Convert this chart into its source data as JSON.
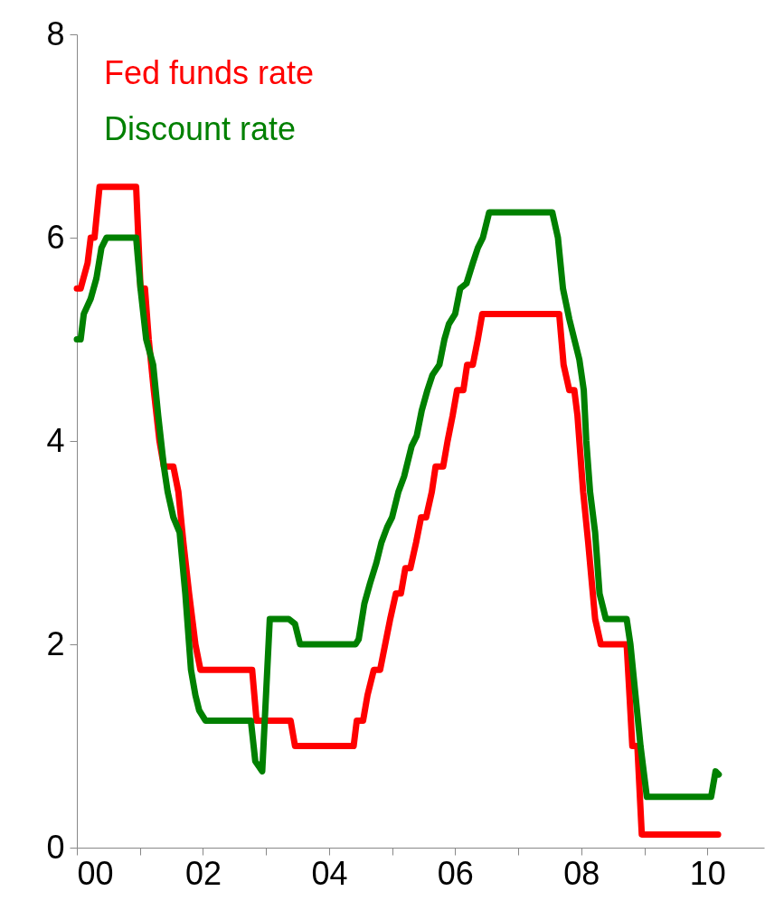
{
  "chart_data": {
    "type": "line",
    "xlim": [
      2000,
      2010.9
    ],
    "ylim": [
      0,
      8
    ],
    "yticks": [
      0,
      2,
      4,
      6,
      8
    ],
    "xticks": [
      {
        "value": 2000,
        "label": "00"
      },
      {
        "value": 2001,
        "label": null
      },
      {
        "value": 2002,
        "label": "02"
      },
      {
        "value": 2003,
        "label": null
      },
      {
        "value": 2004,
        "label": "04"
      },
      {
        "value": 2005,
        "label": null
      },
      {
        "value": 2006,
        "label": "06"
      },
      {
        "value": 2007,
        "label": null
      },
      {
        "value": 2008,
        "label": "08"
      },
      {
        "value": 2009,
        "label": null
      },
      {
        "value": 2010,
        "label": "10"
      }
    ],
    "grid": false,
    "legend": "top left",
    "marker": "none",
    "line_style": "solid",
    "series": [
      {
        "name": "Fed funds rate",
        "color": "#ff0000",
        "x": [
          2000.0,
          2000.06,
          2000.17,
          2000.22,
          2000.28,
          2000.36,
          2000.94,
          2001.01,
          2001.08,
          2001.14,
          2001.22,
          2001.31,
          2001.38,
          2001.53,
          2001.61,
          2001.69,
          2001.78,
          2001.88,
          2001.96,
          2002.78,
          2002.85,
          2003.39,
          2003.46,
          2004.39,
          2004.44,
          2004.54,
          2004.61,
          2004.71,
          2004.81,
          2004.89,
          2004.97,
          2005.06,
          2005.14,
          2005.21,
          2005.29,
          2005.38,
          2005.46,
          2005.54,
          2005.63,
          2005.69,
          2005.81,
          2005.88,
          2005.96,
          2006.03,
          2006.13,
          2006.19,
          2006.28,
          2006.36,
          2006.43,
          2007.65,
          2007.72,
          2007.81,
          2007.89,
          2007.94,
          2008.03,
          2008.11,
          2008.22,
          2008.31,
          2008.72,
          2008.81,
          2008.89,
          2008.96,
          2010.17
        ],
        "values": [
          5.5,
          5.5,
          5.75,
          6.0,
          6.0,
          6.5,
          6.5,
          5.5,
          5.5,
          5.0,
          4.5,
          4.0,
          3.75,
          3.75,
          3.5,
          3.0,
          2.5,
          2.0,
          1.75,
          1.75,
          1.25,
          1.25,
          1.0,
          1.0,
          1.25,
          1.25,
          1.5,
          1.75,
          1.75,
          2.0,
          2.25,
          2.5,
          2.5,
          2.75,
          2.75,
          3.0,
          3.25,
          3.25,
          3.5,
          3.75,
          3.75,
          4.0,
          4.25,
          4.5,
          4.5,
          4.75,
          4.75,
          5.0,
          5.25,
          5.25,
          4.75,
          4.5,
          4.5,
          4.25,
          3.5,
          3.0,
          2.25,
          2.0,
          2.0,
          1.0,
          1.0,
          0.13,
          0.13
        ]
      },
      {
        "name": "Discount rate",
        "color": "#008000",
        "x": [
          2000.0,
          2000.06,
          2000.11,
          2000.22,
          2000.31,
          2000.39,
          2000.47,
          2000.94,
          2001.01,
          2001.1,
          2001.21,
          2001.29,
          2001.38,
          2001.44,
          2001.53,
          2001.63,
          2001.72,
          2001.81,
          2001.88,
          2001.94,
          2002.04,
          2002.76,
          2002.83,
          2002.94,
          2003.06,
          2003.36,
          2003.46,
          2003.54,
          2004.42,
          2004.47,
          2004.56,
          2004.65,
          2004.75,
          2004.83,
          2004.92,
          2005.0,
          2005.1,
          2005.19,
          2005.31,
          2005.39,
          2005.47,
          2005.56,
          2005.64,
          2005.75,
          2005.83,
          2005.9,
          2006.0,
          2006.08,
          2006.18,
          2006.28,
          2006.36,
          2006.44,
          2006.54,
          2007.54,
          2007.63,
          2007.71,
          2007.81,
          2007.89,
          2007.97,
          2008.04,
          2008.08,
          2008.14,
          2008.22,
          2008.29,
          2008.39,
          2008.72,
          2008.78,
          2008.86,
          2008.94,
          2009.04,
          2010.06,
          2010.13,
          2010.18
        ],
        "values": [
          5.0,
          5.0,
          5.25,
          5.4,
          5.6,
          5.9,
          6.0,
          6.0,
          5.5,
          5.0,
          4.75,
          4.25,
          3.75,
          3.5,
          3.25,
          3.1,
          2.5,
          1.75,
          1.5,
          1.35,
          1.25,
          1.25,
          0.85,
          0.75,
          2.25,
          2.25,
          2.2,
          2.0,
          2.0,
          2.05,
          2.4,
          2.6,
          2.8,
          3.0,
          3.15,
          3.25,
          3.5,
          3.65,
          3.95,
          4.05,
          4.3,
          4.5,
          4.65,
          4.75,
          5.0,
          5.15,
          5.25,
          5.5,
          5.55,
          5.75,
          5.9,
          6.0,
          6.25,
          6.25,
          6.0,
          5.5,
          5.2,
          5.0,
          4.8,
          4.5,
          4.0,
          3.5,
          3.1,
          2.5,
          2.25,
          2.25,
          2.0,
          1.5,
          1.0,
          0.5,
          0.5,
          0.75,
          0.72
        ]
      }
    ]
  }
}
